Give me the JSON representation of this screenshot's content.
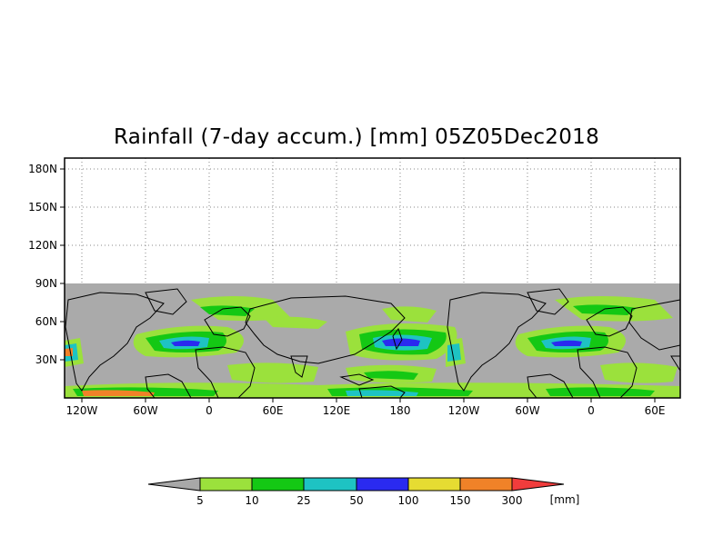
{
  "title": "Rainfall (7-day accum.) [mm] 05Z05Dec2018",
  "map": {
    "y_ticks": [
      "180N",
      "150N",
      "120N",
      "90N",
      "60N",
      "30N"
    ],
    "x_ticks": [
      "120W",
      "60W",
      "0",
      "60E",
      "120E",
      "180",
      "120W",
      "60W",
      "0",
      "60E"
    ],
    "no_data_color": "#aaaaaa"
  },
  "legend": {
    "colors": [
      "#a8a8a8",
      "#9be13c",
      "#14c814",
      "#1ec3c3",
      "#2a2af0",
      "#e6dc32",
      "#f08228",
      "#f03c3c"
    ],
    "labels": [
      "5",
      "10",
      "25",
      "50",
      "100",
      "150",
      "300"
    ],
    "unit": "[mm]"
  }
}
